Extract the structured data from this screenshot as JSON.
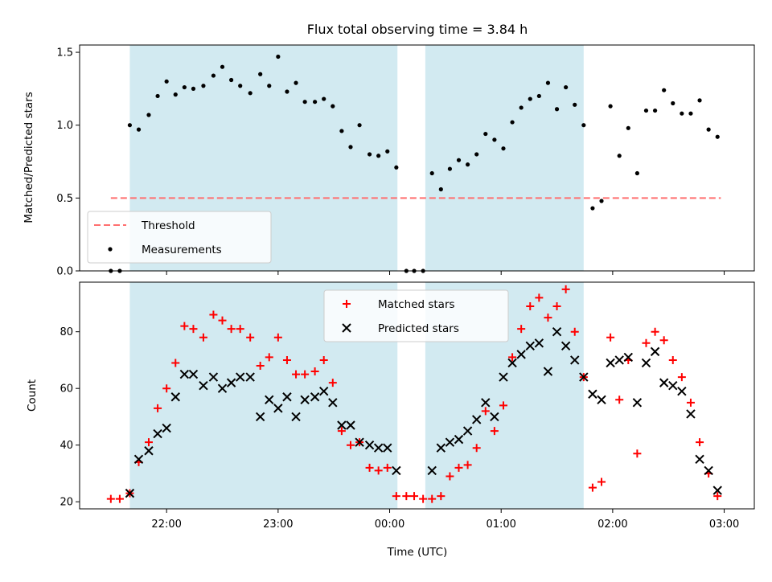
{
  "chart_data": {
    "title": "Flux total observing time = 3.84 h",
    "xlabel": "Time (UTC)",
    "x_unit": "hours (UTC, values past 24 are after midnight)",
    "x_ticks": [
      {
        "x": 22,
        "label": "22:00"
      },
      {
        "x": 23,
        "label": "23:00"
      },
      {
        "x": 24,
        "label": "00:00"
      },
      {
        "x": 25,
        "label": "01:00"
      },
      {
        "x": 26,
        "label": "02:00"
      },
      {
        "x": 27,
        "label": "03:00"
      }
    ],
    "xlim": [
      21.22,
      27.27
    ],
    "shaded_intervals": [
      [
        21.67,
        24.07
      ],
      [
        24.32,
        25.74
      ]
    ],
    "shade_color": "#add8e6",
    "charts": [
      {
        "type": "scatter",
        "ylabel": "Matched/Predicted stars",
        "ylim": [
          0,
          1.55
        ],
        "yticks": [
          {
            "y": 0.0,
            "label": "0.0"
          },
          {
            "y": 0.5,
            "label": "0.5"
          },
          {
            "y": 1.0,
            "label": "1.0"
          },
          {
            "y": 1.5,
            "label": "1.5"
          }
        ],
        "threshold": {
          "name": "Threshold",
          "y": 0.5,
          "x_range": [
            21.5,
            26.97
          ],
          "color": "#ff6f6f"
        },
        "series": [
          {
            "name": "Measurements",
            "color": "#000000",
            "marker": "dot",
            "points": [
              [
                21.5,
                0
              ],
              [
                21.58,
                0
              ],
              [
                21.67,
                1.0
              ],
              [
                21.75,
                0.97
              ],
              [
                21.84,
                1.07
              ],
              [
                21.92,
                1.2
              ],
              [
                22.0,
                1.3
              ],
              [
                22.08,
                1.21
              ],
              [
                22.16,
                1.26
              ],
              [
                22.24,
                1.25
              ],
              [
                22.33,
                1.27
              ],
              [
                22.42,
                1.34
              ],
              [
                22.5,
                1.4
              ],
              [
                22.58,
                1.31
              ],
              [
                22.66,
                1.27
              ],
              [
                22.75,
                1.22
              ],
              [
                22.84,
                1.35
              ],
              [
                22.92,
                1.27
              ],
              [
                23.0,
                1.47
              ],
              [
                23.08,
                1.23
              ],
              [
                23.16,
                1.29
              ],
              [
                23.24,
                1.16
              ],
              [
                23.33,
                1.16
              ],
              [
                23.41,
                1.18
              ],
              [
                23.49,
                1.13
              ],
              [
                23.57,
                0.96
              ],
              [
                23.65,
                0.85
              ],
              [
                23.73,
                1.0
              ],
              [
                23.82,
                0.8
              ],
              [
                23.9,
                0.79
              ],
              [
                23.98,
                0.82
              ],
              [
                24.06,
                0.71
              ],
              [
                24.15,
                0
              ],
              [
                24.22,
                0
              ],
              [
                24.3,
                0
              ],
              [
                24.38,
                0.67
              ],
              [
                24.46,
                0.56
              ],
              [
                24.54,
                0.7
              ],
              [
                24.62,
                0.76
              ],
              [
                24.7,
                0.73
              ],
              [
                24.78,
                0.8
              ],
              [
                24.86,
                0.94
              ],
              [
                24.94,
                0.9
              ],
              [
                25.02,
                0.84
              ],
              [
                25.1,
                1.02
              ],
              [
                25.18,
                1.12
              ],
              [
                25.26,
                1.18
              ],
              [
                25.34,
                1.2
              ],
              [
                25.42,
                1.29
              ],
              [
                25.5,
                1.11
              ],
              [
                25.58,
                1.26
              ],
              [
                25.66,
                1.14
              ],
              [
                25.74,
                1.0
              ],
              [
                25.82,
                0.43
              ],
              [
                25.9,
                0.48
              ],
              [
                25.98,
                1.13
              ],
              [
                26.06,
                0.79
              ],
              [
                26.14,
                0.98
              ],
              [
                26.22,
                0.67
              ],
              [
                26.3,
                1.1
              ],
              [
                26.38,
                1.1
              ],
              [
                26.46,
                1.24
              ],
              [
                26.54,
                1.15
              ],
              [
                26.62,
                1.08
              ],
              [
                26.7,
                1.08
              ],
              [
                26.78,
                1.17
              ],
              [
                26.86,
                0.97
              ],
              [
                26.94,
                0.92
              ]
            ]
          }
        ],
        "legend": {
          "position": "lower left",
          "entries": [
            "Threshold",
            "Measurements"
          ]
        }
      },
      {
        "type": "scatter",
        "ylabel": "Count",
        "ylim": [
          17.5,
          97.5
        ],
        "yticks": [
          {
            "y": 20,
            "label": "20"
          },
          {
            "y": 40,
            "label": "40"
          },
          {
            "y": 60,
            "label": "60"
          },
          {
            "y": 80,
            "label": "80"
          }
        ],
        "series": [
          {
            "name": "Matched stars",
            "color": "#ff0000",
            "marker": "plus",
            "points": [
              [
                21.5,
                21
              ],
              [
                21.58,
                21
              ],
              [
                21.67,
                23
              ],
              [
                21.75,
                34
              ],
              [
                21.84,
                41
              ],
              [
                21.92,
                53
              ],
              [
                22.0,
                60
              ],
              [
                22.08,
                69
              ],
              [
                22.16,
                82
              ],
              [
                22.24,
                81
              ],
              [
                22.33,
                78
              ],
              [
                22.42,
                86
              ],
              [
                22.5,
                84
              ],
              [
                22.58,
                81
              ],
              [
                22.66,
                81
              ],
              [
                22.75,
                78
              ],
              [
                22.84,
                68
              ],
              [
                22.92,
                71
              ],
              [
                23.0,
                78
              ],
              [
                23.08,
                70
              ],
              [
                23.16,
                65
              ],
              [
                23.24,
                65
              ],
              [
                23.33,
                66
              ],
              [
                23.41,
                70
              ],
              [
                23.49,
                62
              ],
              [
                23.57,
                45
              ],
              [
                23.65,
                40
              ],
              [
                23.73,
                41
              ],
              [
                23.82,
                32
              ],
              [
                23.9,
                31
              ],
              [
                23.98,
                32
              ],
              [
                24.06,
                22
              ],
              [
                24.15,
                22
              ],
              [
                24.22,
                22
              ],
              [
                24.3,
                21
              ],
              [
                24.38,
                21
              ],
              [
                24.46,
                22
              ],
              [
                24.54,
                29
              ],
              [
                24.62,
                32
              ],
              [
                24.7,
                33
              ],
              [
                24.78,
                39
              ],
              [
                24.86,
                52
              ],
              [
                24.94,
                45
              ],
              [
                25.02,
                54
              ],
              [
                25.1,
                71
              ],
              [
                25.18,
                81
              ],
              [
                25.26,
                89
              ],
              [
                25.34,
                92
              ],
              [
                25.42,
                85
              ],
              [
                25.5,
                89
              ],
              [
                25.58,
                95
              ],
              [
                25.66,
                80
              ],
              [
                25.74,
                64
              ],
              [
                25.82,
                25
              ],
              [
                25.9,
                27
              ],
              [
                25.98,
                78
              ],
              [
                26.06,
                56
              ],
              [
                26.14,
                70
              ],
              [
                26.22,
                37
              ],
              [
                26.3,
                76
              ],
              [
                26.38,
                80
              ],
              [
                26.46,
                77
              ],
              [
                26.54,
                70
              ],
              [
                26.62,
                64
              ],
              [
                26.7,
                55
              ],
              [
                26.78,
                41
              ],
              [
                26.86,
                30
              ],
              [
                26.94,
                22
              ]
            ]
          },
          {
            "name": "Predicted stars",
            "color": "#000000",
            "marker": "x",
            "points": [
              [
                21.67,
                23
              ],
              [
                21.75,
                35
              ],
              [
                21.84,
                38
              ],
              [
                21.92,
                44
              ],
              [
                22.0,
                46
              ],
              [
                22.08,
                57
              ],
              [
                22.16,
                65
              ],
              [
                22.24,
                65
              ],
              [
                22.33,
                61
              ],
              [
                22.42,
                64
              ],
              [
                22.5,
                60
              ],
              [
                22.58,
                62
              ],
              [
                22.66,
                64
              ],
              [
                22.75,
                64
              ],
              [
                22.84,
                50
              ],
              [
                22.92,
                56
              ],
              [
                23.0,
                53
              ],
              [
                23.08,
                57
              ],
              [
                23.16,
                50
              ],
              [
                23.24,
                56
              ],
              [
                23.33,
                57
              ],
              [
                23.41,
                59
              ],
              [
                23.49,
                55
              ],
              [
                23.57,
                47
              ],
              [
                23.65,
                47
              ],
              [
                23.73,
                41
              ],
              [
                23.82,
                40
              ],
              [
                23.9,
                39
              ],
              [
                23.98,
                39
              ],
              [
                24.06,
                31
              ],
              [
                24.38,
                31
              ],
              [
                24.46,
                39
              ],
              [
                24.54,
                41
              ],
              [
                24.62,
                42
              ],
              [
                24.7,
                45
              ],
              [
                24.78,
                49
              ],
              [
                24.86,
                55
              ],
              [
                24.94,
                50
              ],
              [
                25.02,
                64
              ],
              [
                25.1,
                69
              ],
              [
                25.18,
                72
              ],
              [
                25.26,
                75
              ],
              [
                25.34,
                76
              ],
              [
                25.42,
                66
              ],
              [
                25.5,
                80
              ],
              [
                25.58,
                75
              ],
              [
                25.66,
                70
              ],
              [
                25.74,
                64
              ],
              [
                25.82,
                58
              ],
              [
                25.9,
                56
              ],
              [
                25.98,
                69
              ],
              [
                26.06,
                70
              ],
              [
                26.14,
                71
              ],
              [
                26.22,
                55
              ],
              [
                26.3,
                69
              ],
              [
                26.38,
                73
              ],
              [
                26.46,
                62
              ],
              [
                26.54,
                61
              ],
              [
                26.62,
                59
              ],
              [
                26.7,
                51
              ],
              [
                26.78,
                35
              ],
              [
                26.86,
                31
              ],
              [
                26.94,
                24
              ]
            ]
          }
        ],
        "legend": {
          "position": "upper center",
          "entries": [
            "Matched stars",
            "Predicted stars"
          ]
        }
      }
    ]
  }
}
